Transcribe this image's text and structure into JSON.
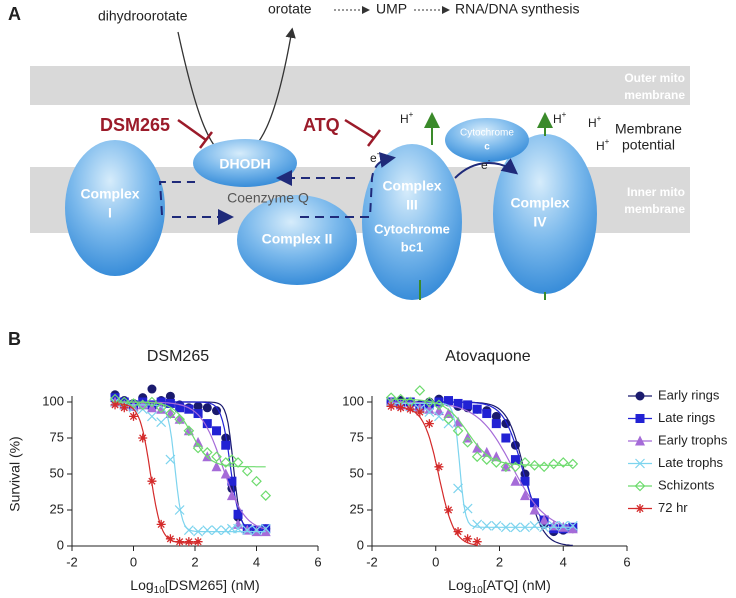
{
  "panel_a": {
    "panel_label": "A",
    "molecules": [
      "dihydroorotate",
      "orotate",
      "UMP",
      "RNA/DNA synthesis"
    ],
    "membranes": {
      "outer": [
        "Outer mito",
        "membrane"
      ],
      "inner": [
        "Inner mito",
        "membrane"
      ]
    },
    "inhibitors": [
      "DSM265",
      "ATQ"
    ],
    "dhodh": "DHODH",
    "coenzyme": "Coenzyme Q",
    "complex_1": [
      "Complex",
      "I"
    ],
    "complex_2": "Complex II",
    "complex_3": [
      "Complex",
      "III",
      "Cytochrome",
      "bc1"
    ],
    "cytochrome_c": [
      "Cytochrome",
      "c"
    ],
    "complex_4": [
      "Complex",
      "IV"
    ],
    "protons": [
      {
        "base": "H",
        "sup": "+"
      },
      {
        "base": "H",
        "sup": "+"
      },
      {
        "base": "H",
        "sup": "+"
      },
      {
        "base": "H",
        "sup": "+"
      }
    ],
    "electrons": [
      {
        "base": "e",
        "sup": "-"
      },
      {
        "base": "e",
        "sup": "-"
      }
    ],
    "membrane_potential": [
      "Membrane",
      "potential"
    ]
  },
  "panel_b_label": "B",
  "chart_data": [
    {
      "type": "scatter",
      "title": "DSM265",
      "ylabel": "Survival (%)",
      "xlabel": {
        "base": "Log",
        "sub": "10",
        "rest": "[DSM265] (nM)"
      },
      "xlim": [
        -2,
        6
      ],
      "xticks": [
        -2,
        0,
        2,
        4,
        6
      ],
      "ylim": [
        0,
        100
      ],
      "yticks": [
        0,
        25,
        50,
        75,
        100
      ],
      "series": [
        {
          "color": "#1a1a6e",
          "marker": "circle",
          "x": [
            -0.6,
            -0.3,
            0,
            0.3,
            0.6,
            0.9,
            1.2,
            1.5,
            1.8,
            2.1,
            2.4,
            2.7,
            3.0,
            3.2,
            3.4,
            3.7,
            4.0,
            4.3
          ],
          "values": [
            105,
            101,
            99,
            103,
            109,
            101,
            104,
            98,
            96,
            97,
            96,
            94,
            75,
            40,
            20,
            12,
            11,
            12
          ],
          "fit": {
            "top": 100,
            "bottom": 11,
            "x50": 3.25,
            "slope": 4
          }
        },
        {
          "color": "#2222d4",
          "marker": "square",
          "x": [
            -0.6,
            -0.3,
            0,
            0.3,
            0.6,
            0.9,
            1.2,
            1.5,
            1.8,
            2.1,
            2.4,
            2.7,
            3.0,
            3.2,
            3.4,
            3.7,
            4.0,
            4.3
          ],
          "values": [
            103,
            100,
            98,
            100,
            98,
            100,
            99,
            96,
            95,
            92,
            85,
            80,
            70,
            45,
            22,
            12,
            11,
            12
          ],
          "fit": {
            "top": 100,
            "bottom": 11,
            "x50": 3.15,
            "slope": 3
          }
        },
        {
          "color": "#a56bd8",
          "marker": "triangle",
          "x": [
            -0.6,
            -0.3,
            0,
            0.3,
            0.6,
            0.9,
            1.2,
            1.5,
            1.8,
            2.1,
            2.4,
            2.7,
            3.0,
            3.2,
            3.4,
            3.7,
            4.0,
            4.3
          ],
          "values": [
            100,
            98,
            97,
            98,
            96,
            95,
            92,
            88,
            80,
            72,
            62,
            55,
            50,
            35,
            15,
            11,
            10,
            10
          ],
          "fit": {
            "top": 100,
            "bottom": 10,
            "x50": 2.9,
            "slope": 1.2
          }
        },
        {
          "color": "#7dd4ee",
          "marker": "x",
          "x": [
            -0.6,
            -0.3,
            0,
            0.3,
            0.6,
            0.9,
            1.2,
            1.5,
            1.8,
            2.1,
            2.4,
            2.7,
            3.0,
            3.2,
            3.4,
            3.7,
            4.0,
            4.3
          ],
          "values": [
            100,
            98,
            96,
            95,
            90,
            86,
            60,
            25,
            11,
            10,
            11,
            11,
            11,
            12,
            12,
            11,
            11,
            12
          ],
          "fit": {
            "top": 98,
            "bottom": 10,
            "x50": 1.35,
            "slope": 4
          }
        },
        {
          "color": "#6edb6e",
          "marker": "diamond",
          "x": [
            -0.6,
            -0.3,
            0,
            0.3,
            0.6,
            0.9,
            1.2,
            1.5,
            1.8,
            2.1,
            2.4,
            2.7,
            3.0,
            3.2,
            3.4,
            3.7,
            4.0,
            4.3
          ],
          "values": [
            102,
            100,
            99,
            98,
            100,
            96,
            92,
            88,
            80,
            68,
            65,
            62,
            58,
            60,
            58,
            52,
            45,
            35
          ],
          "fit": {
            "top": 100,
            "bottom": 55,
            "x50": 1.9,
            "slope": 1.5
          }
        },
        {
          "color": "#d42a2a",
          "marker": "star",
          "x": [
            -0.6,
            -0.3,
            0,
            0.3,
            0.6,
            0.9,
            1.2,
            1.5,
            1.8,
            2.1
          ],
          "values": [
            98,
            96,
            90,
            75,
            45,
            15,
            5,
            3,
            3,
            3
          ],
          "fit": {
            "top": 99,
            "bottom": 2,
            "x50": 0.55,
            "slope": 2.5
          }
        }
      ]
    },
    {
      "type": "scatter",
      "title": "Atovaquone",
      "xlabel": {
        "base": "Log",
        "sub": "10",
        "rest": "[ATQ] (nM)"
      },
      "xlim": [
        -2,
        6
      ],
      "xticks": [
        -2,
        0,
        2,
        4,
        6
      ],
      "ylim": [
        0,
        100
      ],
      "yticks": [
        0,
        25,
        50,
        75,
        100
      ],
      "legend": "right",
      "series": [
        {
          "name": "Early rings",
          "color": "#1a1a6e",
          "marker": "circle",
          "x": [
            -1.4,
            -1.1,
            -0.8,
            -0.5,
            -0.2,
            0.1,
            0.4,
            0.7,
            1.0,
            1.3,
            1.6,
            1.9,
            2.2,
            2.5,
            2.8,
            3.1,
            3.4,
            3.7,
            4.0,
            4.3
          ],
          "values": [
            100,
            101,
            99,
            98,
            100,
            102,
            100,
            97,
            96,
            95,
            94,
            90,
            85,
            70,
            50,
            30,
            15,
            10,
            11,
            12
          ],
          "fit": {
            "top": 100,
            "bottom": 0,
            "x50": 2.8,
            "slope": 1.6
          }
        },
        {
          "name": "Late rings",
          "color": "#2222d4",
          "marker": "square",
          "x": [
            -1.4,
            -1.1,
            -0.8,
            -0.5,
            -0.2,
            0.1,
            0.4,
            0.7,
            1.0,
            1.3,
            1.6,
            1.9,
            2.2,
            2.5,
            2.8,
            3.1,
            3.4,
            3.7,
            4.0,
            4.3
          ],
          "values": [
            100,
            99,
            100,
            97,
            98,
            100,
            101,
            99,
            98,
            95,
            92,
            85,
            75,
            60,
            45,
            30,
            18,
            12,
            12,
            13
          ],
          "fit": {
            "top": 100,
            "bottom": 10,
            "x50": 2.7,
            "slope": 1.5
          }
        },
        {
          "name": "Early trophs",
          "color": "#a56bd8",
          "marker": "triangle",
          "x": [
            -1.4,
            -1.1,
            -0.8,
            -0.5,
            -0.2,
            0.1,
            0.4,
            0.7,
            1.0,
            1.3,
            1.6,
            1.9,
            2.2,
            2.5,
            2.8,
            3.1,
            3.4,
            3.7,
            4.0,
            4.3
          ],
          "values": [
            100,
            98,
            97,
            96,
            95,
            94,
            92,
            86,
            75,
            68,
            65,
            62,
            55,
            45,
            35,
            25,
            18,
            14,
            13,
            12
          ],
          "fit": {
            "top": 100,
            "bottom": 10,
            "x50": 2.4,
            "slope": 0.8
          }
        },
        {
          "name": "Late trophs",
          "color": "#7dd4ee",
          "marker": "x",
          "x": [
            -1.4,
            -1.1,
            -0.8,
            -0.5,
            -0.2,
            0.1,
            0.4,
            0.7,
            1.0,
            1.3,
            1.6,
            1.9,
            2.2,
            2.5,
            2.8,
            3.1,
            3.4,
            3.7,
            4.0,
            4.3
          ],
          "values": [
            100,
            99,
            97,
            95,
            93,
            90,
            85,
            40,
            26,
            15,
            14,
            14,
            13,
            13,
            13,
            14,
            13,
            14,
            14,
            14
          ],
          "fit": {
            "top": 99,
            "bottom": 13,
            "x50": 0.75,
            "slope": 5
          }
        },
        {
          "name": "Schizonts",
          "color": "#6edb6e",
          "marker": "diamond",
          "x": [
            -1.4,
            -1.1,
            -0.8,
            -0.5,
            -0.2,
            0.1,
            0.4,
            0.7,
            1.0,
            1.3,
            1.6,
            1.9,
            2.2,
            2.5,
            2.8,
            3.1,
            3.4,
            3.7,
            4.0,
            4.3
          ],
          "values": [
            103,
            102,
            100,
            108,
            100,
            98,
            88,
            80,
            72,
            62,
            60,
            58,
            55,
            55,
            58,
            56,
            55,
            57,
            58,
            57
          ],
          "fit": {
            "top": 102,
            "bottom": 56,
            "x50": 1.0,
            "slope": 1.2
          }
        },
        {
          "name": "72 hr",
          "color": "#d42a2a",
          "marker": "star",
          "x": [
            -1.4,
            -1.1,
            -0.8,
            -0.5,
            -0.2,
            0.1,
            0.4,
            0.7,
            1.0,
            1.3
          ],
          "values": [
            97,
            96,
            95,
            93,
            85,
            55,
            25,
            10,
            5,
            3
          ],
          "fit": {
            "top": 97,
            "bottom": 0,
            "x50": 0.1,
            "slope": 1.8
          }
        }
      ]
    }
  ]
}
